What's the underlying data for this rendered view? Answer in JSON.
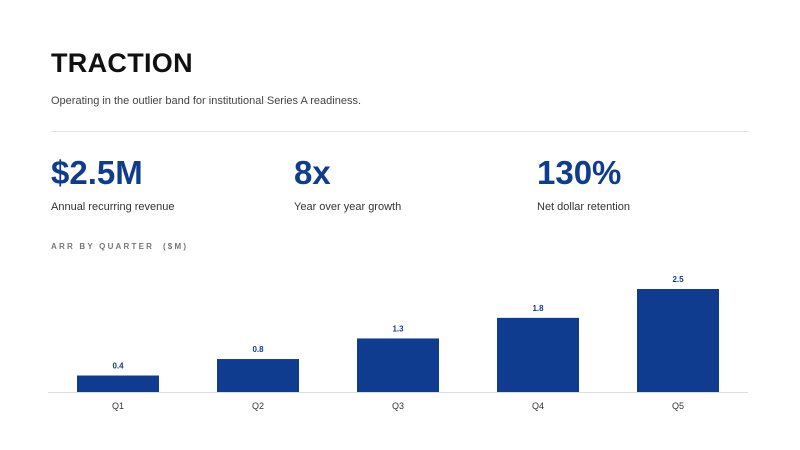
{
  "slide": {
    "title": "TRACTION",
    "subtitle": "Operating in the outlier band for institutional Series A readiness."
  },
  "metrics": [
    {
      "value": "$2.5M",
      "label": "Annual recurring revenue"
    },
    {
      "value": "8x",
      "label": "Year over year growth"
    },
    {
      "value": "130%",
      "label": "Net dollar retention"
    }
  ],
  "colors": {
    "accent": "#0f3c8f",
    "axis": "#dddddd"
  },
  "chart_data": {
    "type": "bar",
    "title": "ARR BY QUARTER  ($M)",
    "categories": [
      "Q1",
      "Q2",
      "Q3",
      "Q4",
      "Q5"
    ],
    "values": [
      0.4,
      0.8,
      1.3,
      1.8,
      2.5
    ],
    "data_labels": [
      "0.4",
      "0.8",
      "1.3",
      "1.8",
      "2.5"
    ],
    "ylim": [
      0,
      2.5
    ],
    "grid": false,
    "legend": "none"
  }
}
